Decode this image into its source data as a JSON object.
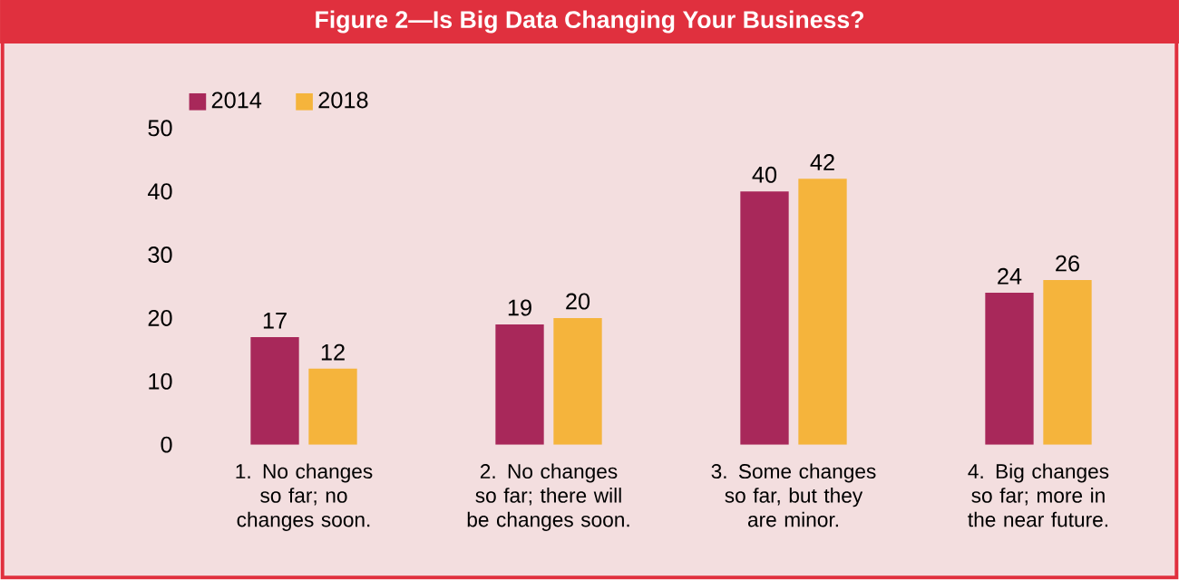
{
  "chart_data": {
    "type": "bar",
    "title": "Figure 2—Is Big Data Changing Your Business?",
    "categories": [
      "1. No changes so far; no changes soon.",
      "2. No changes so far; there will be changes soon.",
      "3. Some changes so far, but they are minor.",
      "4. Big changes so far; more in the near future."
    ],
    "series": [
      {
        "name": "2014",
        "color": "#a8285a",
        "values": [
          17,
          19,
          40,
          24
        ]
      },
      {
        "name": "2018",
        "color": "#f5b43c",
        "values": [
          12,
          20,
          42,
          26
        ]
      }
    ],
    "ylim": [
      0,
      50
    ],
    "yticks": [
      0,
      10,
      20,
      30,
      40,
      50
    ],
    "data_labels": true,
    "legend": "top left"
  }
}
